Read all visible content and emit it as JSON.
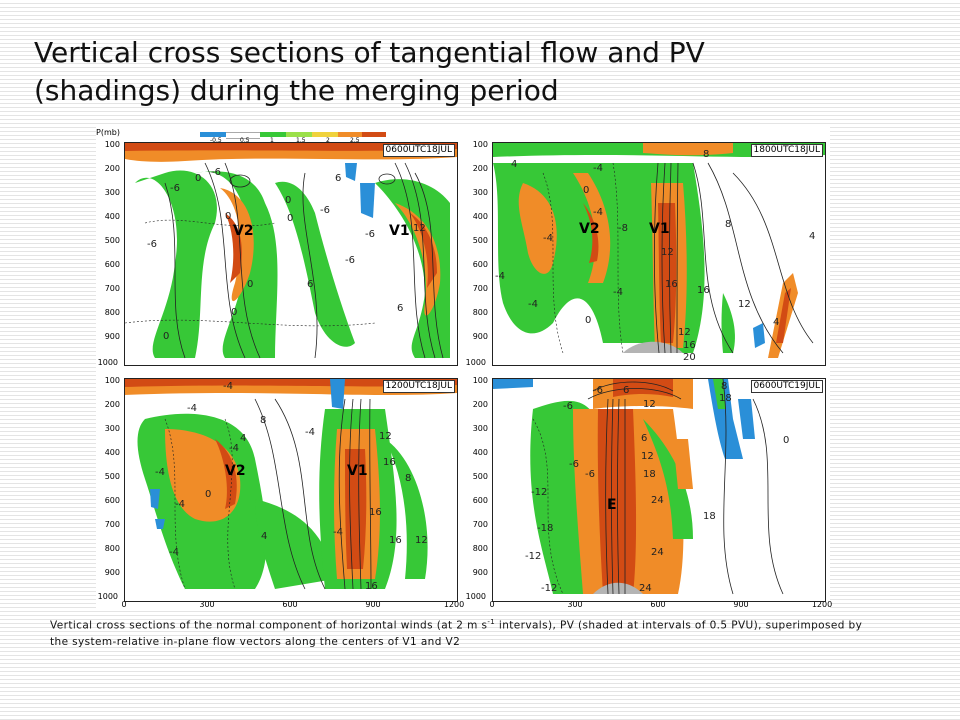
{
  "title_line1": "Vertical cross sections of tangential flow and PV",
  "title_line2": "(shadings) during the merging period",
  "figure": {
    "y_axis_title": "P(mb)",
    "y_ticks": [
      "100",
      "200",
      "300",
      "400",
      "500",
      "600",
      "700",
      "800",
      "900",
      "1000"
    ],
    "x_ticks": [
      "0",
      "300",
      "600",
      "900",
      "1200"
    ],
    "colorbar": {
      "ticks": [
        "-0.5",
        "0.5",
        "1",
        "1.5",
        "2",
        "2.5"
      ],
      "colors": [
        "#2a8fd8",
        "#ffffff",
        "#37c837",
        "#9be04a",
        "#f0d23c",
        "#f08c28",
        "#d24b14"
      ]
    },
    "panels": [
      {
        "time": "0600UTC18JUL",
        "labels": [
          "V2",
          "V1"
        ]
      },
      {
        "time": "1800UTC18JUL",
        "labels": [
          "V2",
          "V1"
        ]
      },
      {
        "time": "1200UTC18JUL",
        "labels": [
          "V2",
          "V1"
        ]
      },
      {
        "time": "0600UTC19JUL",
        "labels": [
          "E"
        ]
      }
    ],
    "contour_labels": {
      "tl": [
        "-6",
        "-6",
        "6",
        "-6",
        "0",
        "-6",
        "0",
        "0",
        "-6",
        "12",
        "-6",
        "0",
        "6",
        "6",
        "0",
        "0",
        "0"
      ],
      "tr": [
        "4",
        "-4",
        "8",
        "0",
        "-4",
        "-8",
        "12",
        "-4",
        "8",
        "4",
        "-4",
        "16",
        "16",
        "12",
        "-4",
        "4",
        "12",
        "-4",
        "0",
        "16",
        "20"
      ],
      "bl": [
        "-4",
        "-4",
        "8",
        "-4",
        "-4",
        "4",
        "12",
        "16",
        "-4",
        "0",
        "-4",
        "8",
        "16",
        "-4",
        "4",
        "16",
        "12",
        "-4",
        "16"
      ],
      "br": [
        "8",
        "-6",
        "-6",
        "6",
        "12",
        "0",
        "-6",
        "6",
        "12",
        "18",
        "-6",
        "18",
        "-12",
        "24",
        "18",
        "-18",
        "-12",
        "24",
        "-12",
        "24"
      ]
    }
  },
  "caption_part1": "Vertical cross sections of the normal component of horizontal winds (at 2 m s",
  "caption_sup": "-1",
  "caption_part2": " intervals), PV (shaded at intervals of 0.5 PVU), superimposed by the system-relative in-plane  flow vectors along the centers of V1 and V2"
}
